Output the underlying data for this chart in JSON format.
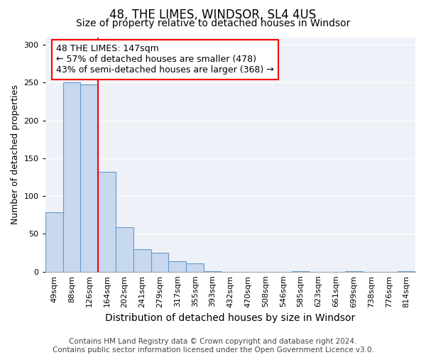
{
  "title": "48, THE LIMES, WINDSOR, SL4 4US",
  "subtitle": "Size of property relative to detached houses in Windsor",
  "xlabel": "Distribution of detached houses by size in Windsor",
  "ylabel": "Number of detached properties",
  "categories": [
    "49sqm",
    "88sqm",
    "126sqm",
    "164sqm",
    "202sqm",
    "241sqm",
    "279sqm",
    "317sqm",
    "355sqm",
    "393sqm",
    "432sqm",
    "470sqm",
    "508sqm",
    "546sqm",
    "585sqm",
    "623sqm",
    "661sqm",
    "699sqm",
    "738sqm",
    "776sqm",
    "814sqm"
  ],
  "values": [
    79,
    250,
    248,
    132,
    59,
    30,
    25,
    14,
    11,
    1,
    0,
    0,
    0,
    0,
    1,
    0,
    0,
    1,
    0,
    0,
    1
  ],
  "bar_color": "#c8d8ee",
  "bar_edge_color": "#6699cc",
  "vline_color": "red",
  "vline_pos": 2.5,
  "annotation_text": "48 THE LIMES: 147sqm\n← 57% of detached houses are smaller (478)\n43% of semi-detached houses are larger (368) →",
  "annotation_box_color": "white",
  "annotation_box_edge_color": "red",
  "ylim": [
    0,
    310
  ],
  "yticks": [
    0,
    50,
    100,
    150,
    200,
    250,
    300
  ],
  "footer_text": "Contains HM Land Registry data © Crown copyright and database right 2024.\nContains public sector information licensed under the Open Government Licence v3.0.",
  "title_fontsize": 12,
  "subtitle_fontsize": 10,
  "xlabel_fontsize": 10,
  "ylabel_fontsize": 9,
  "tick_fontsize": 8,
  "annotation_fontsize": 9,
  "footer_fontsize": 7.5,
  "bg_color": "#eef2f8"
}
